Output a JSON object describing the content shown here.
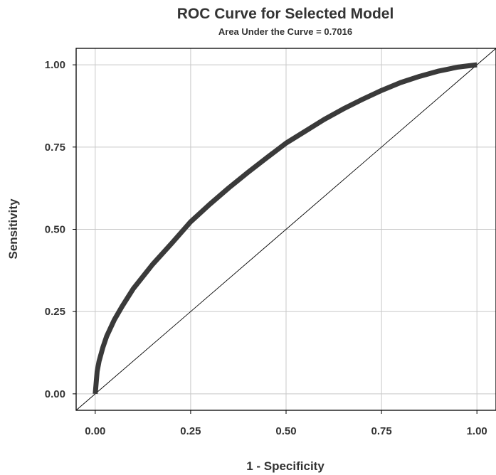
{
  "chart_data": {
    "type": "line",
    "title": "ROC Curve for Selected Model",
    "subtitle": "Area Under the Curve = 0.7016",
    "xlabel": "1 - Specificity",
    "ylabel": "Sensitivity",
    "xlim": [
      -0.05,
      1.05
    ],
    "ylim": [
      -0.05,
      1.05
    ],
    "xticks": [
      "0.00",
      "0.25",
      "0.50",
      "0.75",
      "1.00"
    ],
    "yticks": [
      "0.00",
      "0.25",
      "0.50",
      "0.75",
      "1.00"
    ],
    "grid": true,
    "series": [
      {
        "role": "roc-curve",
        "color": "#3a3a3a",
        "x": [
          0.0,
          0.005,
          0.01,
          0.02,
          0.03,
          0.05,
          0.07,
          0.1,
          0.15,
          0.2,
          0.25,
          0.3,
          0.35,
          0.4,
          0.45,
          0.5,
          0.55,
          0.6,
          0.65,
          0.7,
          0.75,
          0.8,
          0.85,
          0.9,
          0.95,
          1.0
        ],
        "y": [
          0.0,
          0.068,
          0.099,
          0.141,
          0.175,
          0.225,
          0.265,
          0.32,
          0.393,
          0.457,
          0.523,
          0.576,
          0.626,
          0.673,
          0.718,
          0.762,
          0.798,
          0.834,
          0.866,
          0.895,
          0.922,
          0.946,
          0.965,
          0.981,
          0.993,
          1.0
        ]
      },
      {
        "role": "reference-diagonal",
        "color": "#000000",
        "x": [
          -0.05,
          1.05
        ],
        "y": [
          -0.05,
          1.05
        ]
      }
    ]
  }
}
